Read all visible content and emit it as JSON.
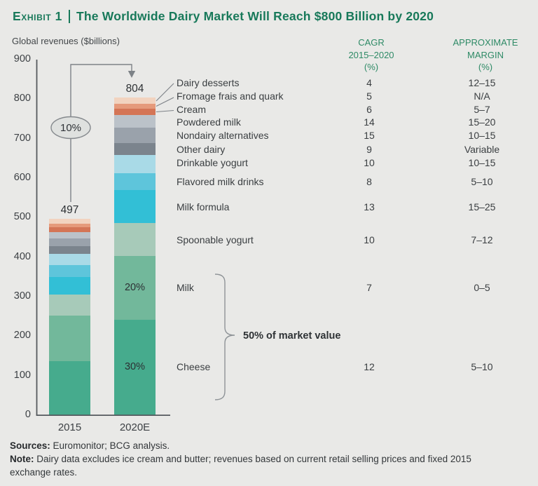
{
  "theme": {
    "accent_green": "#18795a",
    "header_green": "#2e8a66",
    "background": "#e9e9e7",
    "line_gray": "#7d8287",
    "text_dark": "#35393c"
  },
  "header": {
    "exhibit_label": "Exhibit 1",
    "title": "The Worldwide Dairy Market Will Reach $800 Billion by 2020"
  },
  "chart_header": {
    "y_axis_title": "Global revenues ($billions)",
    "cagr_lines": [
      "CAGR",
      "2015–2020",
      "(%)"
    ],
    "margin_lines": [
      "APPROXIMATE",
      "MARGIN",
      "(%)"
    ]
  },
  "chart_data": {
    "type": "bar",
    "stacked": true,
    "title": "The Worldwide Dairy Market Will Reach $800 Billion by 2020",
    "ylabel": "Global revenues ($billions)",
    "ylim": [
      0,
      900
    ],
    "ytick_interval": 100,
    "grid": false,
    "categories": [
      "2015",
      "2020E"
    ],
    "totals": [
      497,
      804
    ],
    "series_note": "series listed bottom-to-top of the stack; values are [2015, 2020E] in $billions (estimated from chart)",
    "series": [
      {
        "name": "Cheese",
        "values": [
          137,
          241
        ],
        "color": "#46ab8d",
        "cagr": "12",
        "margin": "5–10",
        "share_label": "30%"
      },
      {
        "name": "Milk",
        "values": [
          115,
          161
        ],
        "color": "#72b89b",
        "cagr": "7",
        "margin": "0–5",
        "share_label": "20%"
      },
      {
        "name": "Spoonable yogurt",
        "values": [
          53,
          85
        ],
        "color": "#a7cab9",
        "cagr": "10",
        "margin": "7–12"
      },
      {
        "name": "Milk formula",
        "values": [
          45,
          83
        ],
        "color": "#32bfd6",
        "cagr": "13",
        "margin": "15–25"
      },
      {
        "name": "Flavored milk drinks",
        "values": [
          29,
          42
        ],
        "color": "#5ec5db",
        "cagr": "8",
        "margin": "5–10"
      },
      {
        "name": "Drinkable yogurt",
        "values": [
          29,
          46
        ],
        "color": "#a9dae7",
        "cagr": "10",
        "margin": "10–15"
      },
      {
        "name": "Other dairy",
        "values": [
          20,
          31
        ],
        "color": "#7b848d",
        "cagr": "9",
        "margin": "Variable"
      },
      {
        "name": "Nondairy alternatives",
        "values": [
          19,
          39
        ],
        "color": "#9aa2ab",
        "cagr": "15",
        "margin": "10–15"
      },
      {
        "name": "Powdered milk",
        "values": [
          17,
          32
        ],
        "color": "#bbc2c9",
        "cagr": "14",
        "margin": "15–20"
      },
      {
        "name": "Cream",
        "values": [
          12,
          16
        ],
        "color": "#d47556",
        "cagr": "6",
        "margin": "5–7"
      },
      {
        "name": "Fromage frais and quark",
        "values": [
          9,
          12
        ],
        "color": "#e59a7b",
        "cagr": "5",
        "margin": "N/A"
      },
      {
        "name": "Dairy desserts",
        "values": [
          12,
          16
        ],
        "color": "#f2d3bf",
        "cagr": "4",
        "margin": "12–15"
      }
    ],
    "annotations": {
      "growth_badge": "10%",
      "half_market_note": "50% of market value",
      "bar_total_2015": "497",
      "bar_total_2020": "804"
    },
    "legend_position": "right-table"
  },
  "footer": {
    "sources_label": "Sources:",
    "sources_text": "Euromonitor; BCG analysis.",
    "note_label": "Note:",
    "note_text": "Dairy data excludes ice cream and butter; revenues based on current retail selling prices and fixed 2015 exchange rates."
  }
}
